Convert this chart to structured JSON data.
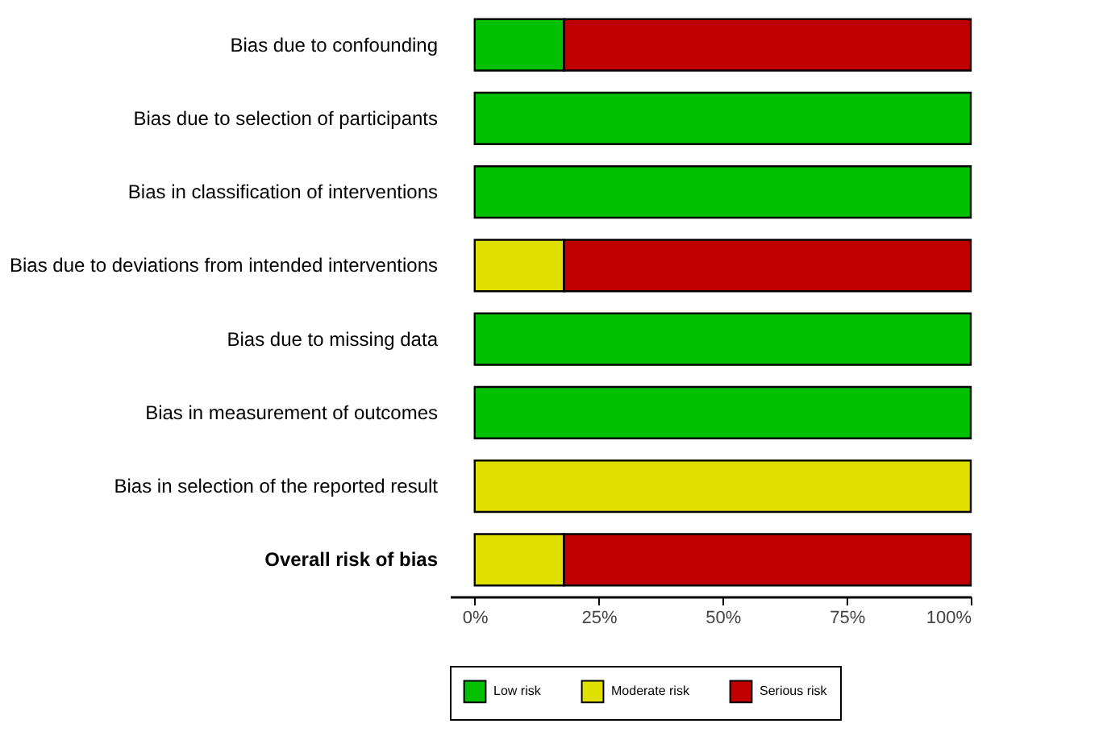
{
  "chart_data": {
    "type": "bar",
    "orientation": "horizontal",
    "stacked": true,
    "categories": [
      "Bias due to confounding",
      "Bias due to selection of participants",
      "Bias in classification of interventions",
      "Bias due to deviations from intended interventions",
      "Bias due to missing data",
      "Bias in measurement of outcomes",
      "Bias in selection of the reported result",
      "Overall risk of bias"
    ],
    "series": [
      {
        "name": "Low risk",
        "color": "#00c000",
        "values": [
          18,
          100,
          100,
          null,
          100,
          100,
          null,
          null
        ]
      },
      {
        "name": "Moderate risk",
        "color": "#e0e000",
        "values": [
          null,
          null,
          null,
          18,
          null,
          null,
          100,
          18
        ]
      },
      {
        "name": "Serious risk",
        "color": "#c00000",
        "values": [
          82,
          null,
          null,
          82,
          null,
          null,
          null,
          82
        ]
      }
    ],
    "xlim": [
      -5,
      100
    ],
    "xticks": [
      {
        "value": 0,
        "label": "0%"
      },
      {
        "value": 25,
        "label": "25%"
      },
      {
        "value": 50,
        "label": "50%"
      },
      {
        "value": 75,
        "label": "75%"
      },
      {
        "value": 100,
        "label": "100%"
      }
    ],
    "grid": false,
    "legend": "bottom"
  }
}
